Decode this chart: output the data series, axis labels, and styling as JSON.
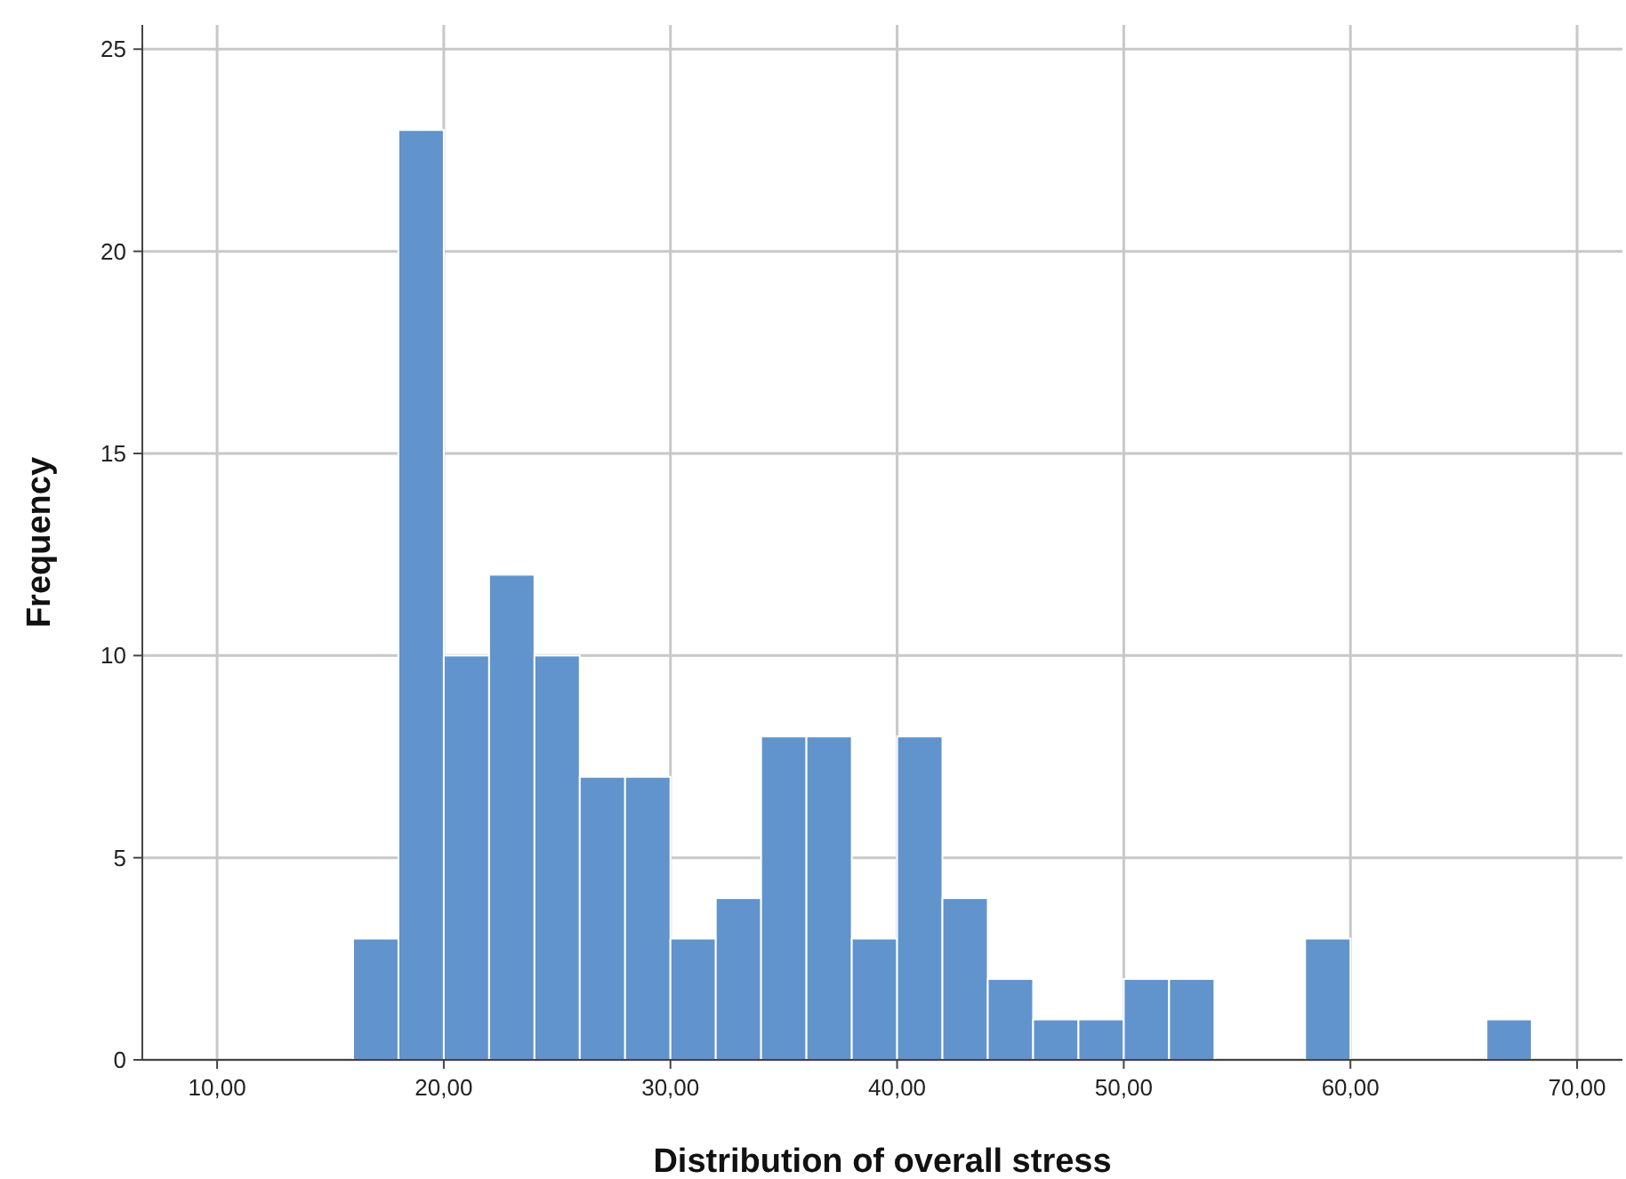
{
  "chart_data": {
    "type": "histogram",
    "xlabel": "Distribution of overall stress",
    "ylabel": "Frequency",
    "bins": [
      16,
      18,
      20,
      22,
      24,
      26,
      28,
      30,
      32,
      34,
      36,
      38,
      40,
      42,
      44,
      46,
      48,
      50,
      52,
      54,
      56,
      58,
      60,
      62,
      64,
      66,
      68
    ],
    "values": [
      3,
      23,
      10,
      12,
      10,
      7,
      7,
      3,
      4,
      8,
      8,
      3,
      8,
      4,
      2,
      1,
      1,
      2,
      2,
      0,
      0,
      3,
      0,
      0,
      0,
      1
    ],
    "color": "#6194cc",
    "xlim": [
      6.7,
      72
    ],
    "xticks": [
      {
        "value": 10,
        "label": "10,00"
      },
      {
        "value": 20,
        "label": "20,00"
      },
      {
        "value": 30,
        "label": "30,00"
      },
      {
        "value": 40,
        "label": "40,00"
      },
      {
        "value": 50,
        "label": "50,00"
      },
      {
        "value": 60,
        "label": "60,00"
      },
      {
        "value": 70,
        "label": "70,00"
      }
    ],
    "ylim": [
      0,
      25.6
    ],
    "yticks": [
      0,
      5,
      10,
      15,
      20,
      25
    ],
    "grid": true
  }
}
